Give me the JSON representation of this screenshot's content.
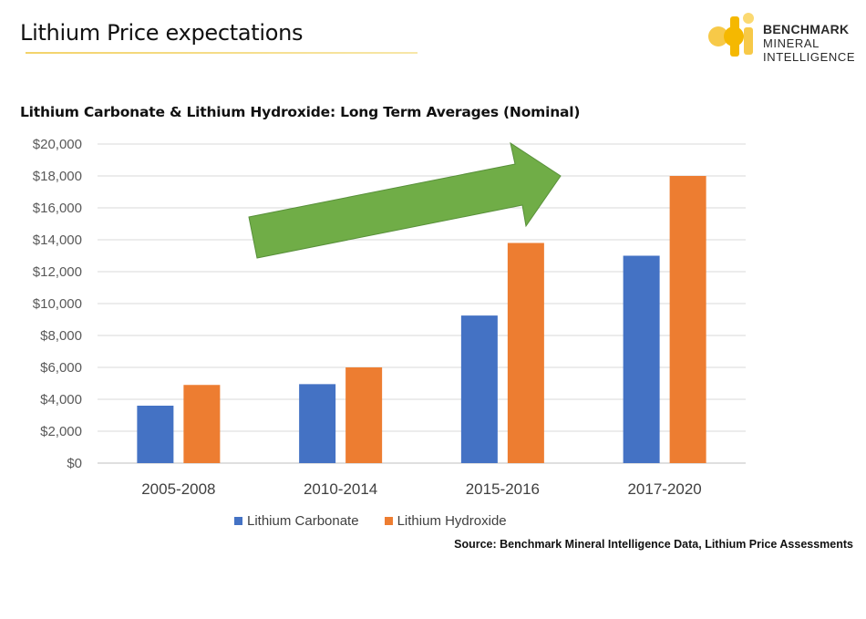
{
  "header": {
    "title": "Lithium Price expectations"
  },
  "logo": {
    "line1": "BENCHMARK",
    "line2": "MINERAL",
    "line3": "INTELLIGENCE",
    "colors": [
      "#f5b800",
      "#f7c948",
      "#fbd971"
    ]
  },
  "source": "Source: Benchmark Mineral Intelligence Data, Lithium Price Assessments",
  "chart_data": {
    "type": "bar",
    "title": "Lithium Carbonate & Lithium Hydroxide: Long Term Averages (Nominal)",
    "categories": [
      "2005-2008",
      "2010-2014",
      "2015-2016",
      "2017-2020"
    ],
    "series": [
      {
        "name": "Lithium Carbonate",
        "values": [
          3600,
          4950,
          9250,
          13000
        ],
        "color": "#4472c4"
      },
      {
        "name": "Lithium Hydroxide",
        "values": [
          4900,
          6000,
          13800,
          18000
        ],
        "color": "#ed7d31"
      }
    ],
    "ylim": [
      0,
      20000
    ],
    "yticks": [
      0,
      2000,
      4000,
      6000,
      8000,
      10000,
      12000,
      14000,
      16000,
      18000,
      20000
    ],
    "ytick_labels": [
      "$0",
      "$2,000",
      "$4,000",
      "$6,000",
      "$8,000",
      "$10,000",
      "$12,000",
      "$14,000",
      "$16,000",
      "$18,000",
      "$20,000"
    ],
    "grid": true,
    "legend": "bottom",
    "annotation": {
      "type": "trend-arrow",
      "color": "#70ad47"
    }
  }
}
